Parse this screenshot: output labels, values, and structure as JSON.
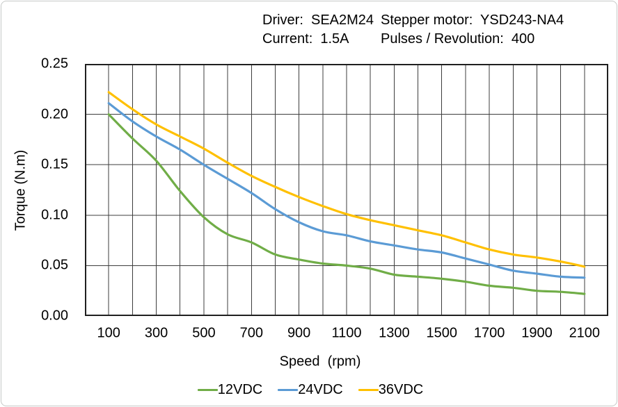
{
  "header": {
    "line1_left": "Driver:  SEA2M24",
    "line1_right": "Stepper motor:  YSD243-NA4",
    "line2_left": "Current:  1.5A",
    "line2_right": "Pulses / Revolution:  400"
  },
  "chart_data": {
    "type": "line",
    "title": "",
    "xlabel": "Speed  (rpm)",
    "ylabel": "Torque (N.m)",
    "xlim": [
      0,
      2200
    ],
    "ylim": [
      0,
      0.25
    ],
    "grid": true,
    "x_gridline_step": 100,
    "y_gridline_step": 0.05,
    "x_tick_values": [
      100,
      300,
      500,
      700,
      900,
      1100,
      1300,
      1500,
      1700,
      1900,
      2100
    ],
    "x_tick_labels": [
      "100",
      "300",
      "500",
      "700",
      "900",
      "1100",
      "1300",
      "1500",
      "1700",
      "1900",
      "2100"
    ],
    "y_tick_values": [
      0.0,
      0.05,
      0.1,
      0.15,
      0.2,
      0.25
    ],
    "y_tick_labels": [
      "0.00",
      "0.05",
      "0.10",
      "0.15",
      "0.20",
      "0.25"
    ],
    "x": [
      100,
      200,
      300,
      400,
      500,
      600,
      700,
      800,
      900,
      1000,
      1100,
      1200,
      1300,
      1400,
      1500,
      1600,
      1700,
      1800,
      1900,
      2000,
      2100
    ],
    "series": [
      {
        "name": "12VDC",
        "color": "#70AD47",
        "values": [
          0.2,
          0.176,
          0.154,
          0.124,
          0.098,
          0.081,
          0.073,
          0.061,
          0.056,
          0.052,
          0.05,
          0.047,
          0.041,
          0.039,
          0.037,
          0.034,
          0.03,
          0.028,
          0.025,
          0.024,
          0.022
        ]
      },
      {
        "name": "24VDC",
        "color": "#5B9BD5",
        "values": [
          0.211,
          0.193,
          0.178,
          0.165,
          0.15,
          0.136,
          0.122,
          0.106,
          0.093,
          0.084,
          0.08,
          0.074,
          0.07,
          0.066,
          0.063,
          0.057,
          0.051,
          0.045,
          0.042,
          0.039,
          0.038
        ]
      },
      {
        "name": "36VDC",
        "color": "#FFC000",
        "values": [
          0.222,
          0.205,
          0.19,
          0.178,
          0.166,
          0.152,
          0.139,
          0.128,
          0.118,
          0.109,
          0.101,
          0.095,
          0.09,
          0.085,
          0.08,
          0.073,
          0.066,
          0.061,
          0.058,
          0.054,
          0.049
        ]
      }
    ],
    "legend_position": "bottom",
    "gridline_color": "#3d3d3d",
    "border_color": "#1f1f1f"
  }
}
